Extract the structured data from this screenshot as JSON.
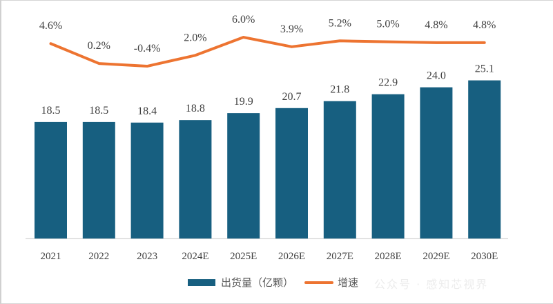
{
  "chart_data": {
    "type": "bar+line",
    "categories": [
      "2021",
      "2022",
      "2023",
      "2024E",
      "2025E",
      "2026E",
      "2027E",
      "2028E",
      "2029E",
      "2030E"
    ],
    "series": [
      {
        "name": "出货量（亿颗）",
        "type": "bar",
        "color": "#175F80",
        "values": [
          18.5,
          18.5,
          18.4,
          18.8,
          19.9,
          20.7,
          21.8,
          22.9,
          24.0,
          25.1
        ],
        "labels": [
          "18.5",
          "18.5",
          "18.4",
          "18.8",
          "19.9",
          "20.7",
          "21.8",
          "22.9",
          "24.0",
          "25.1"
        ]
      },
      {
        "name": "增速",
        "type": "line",
        "color": "#ED7431",
        "values": [
          4.6,
          0.2,
          -0.4,
          2.0,
          6.0,
          3.9,
          5.2,
          5.0,
          4.8,
          4.8
        ],
        "labels": [
          "4.6%",
          "0.2%",
          "-0.4%",
          "2.0%",
          "6.0%",
          "3.9%",
          "5.2%",
          "5.0%",
          "4.8%",
          "4.8%"
        ]
      }
    ],
    "grid": false,
    "legend_position": "bottom"
  },
  "legend": {
    "bar_label": "出货量（亿颗）",
    "line_label": "增速"
  },
  "watermark": "公众号 · 感知芯视界"
}
